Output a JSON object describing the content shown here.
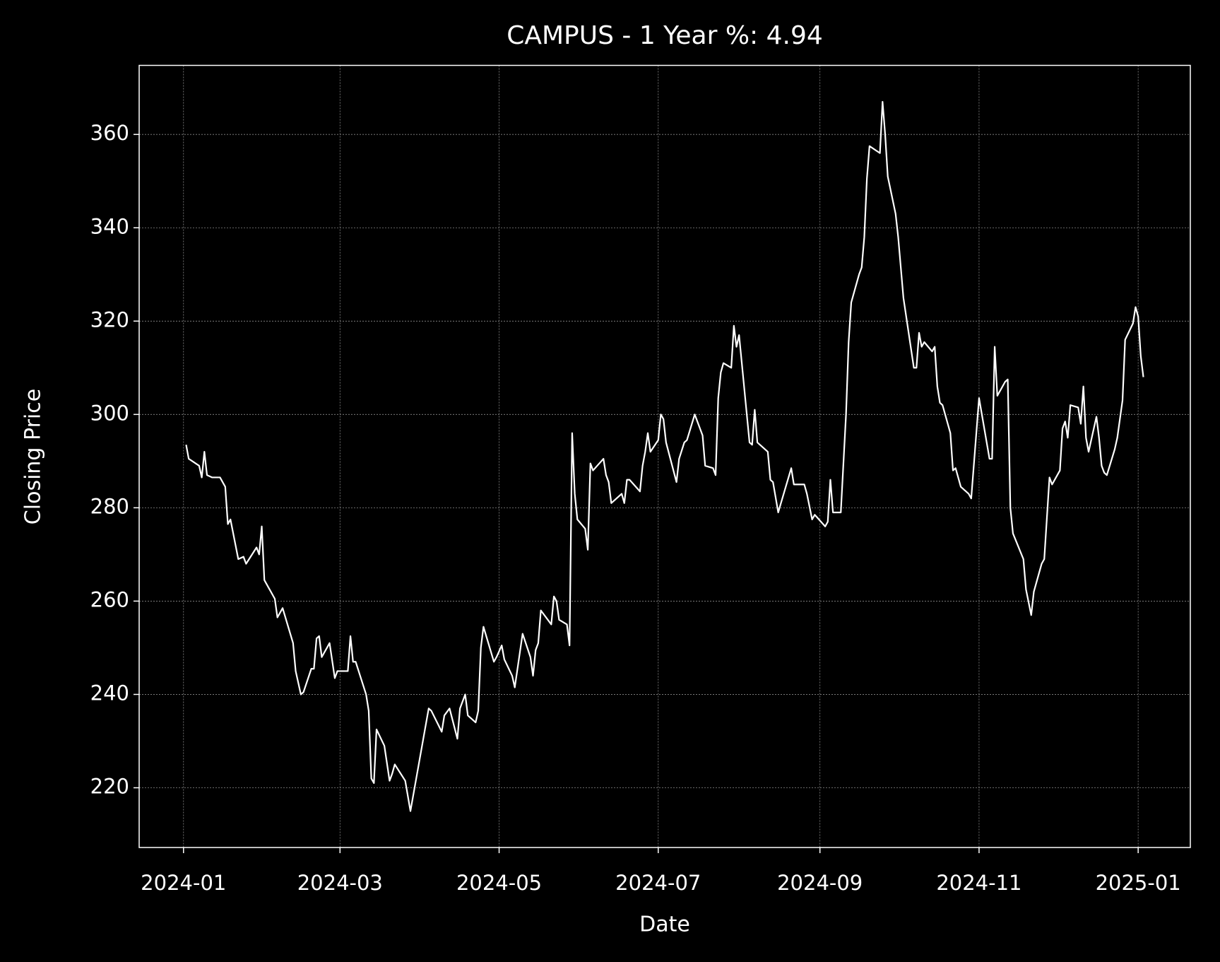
{
  "chart_data": {
    "type": "line",
    "title": "CAMPUS - 1 Year %: 4.94",
    "x_label": "Date",
    "y_label": "Closing Price",
    "color": "#ffffff",
    "grid": true,
    "xlim": [
      "2023-12-15",
      "2025-01-21"
    ],
    "ylim": [
      207.2,
      374.8
    ],
    "xticks": [
      {
        "value": "2024-01-01",
        "label": "2024-01"
      },
      {
        "value": "2024-03-01",
        "label": "2024-03"
      },
      {
        "value": "2024-05-01",
        "label": "2024-05"
      },
      {
        "value": "2024-07-01",
        "label": "2024-07"
      },
      {
        "value": "2024-09-01",
        "label": "2024-09"
      },
      {
        "value": "2024-11-01",
        "label": "2024-11"
      },
      {
        "value": "2025-01-01",
        "label": "2025-01"
      }
    ],
    "yticks": [
      220,
      240,
      260,
      280,
      300,
      320,
      340,
      360
    ],
    "x": [
      "2024-01-02",
      "2024-01-03",
      "2024-01-07",
      "2024-01-08",
      "2024-01-09",
      "2024-01-10",
      "2024-01-12",
      "2024-01-15",
      "2024-01-17",
      "2024-01-18",
      "2024-01-19",
      "2024-01-22",
      "2024-01-24",
      "2024-01-25",
      "2024-01-29",
      "2024-01-30",
      "2024-01-31",
      "2024-02-01",
      "2024-02-05",
      "2024-02-06",
      "2024-02-08",
      "2024-02-12",
      "2024-02-13",
      "2024-02-15",
      "2024-02-16",
      "2024-02-19",
      "2024-02-20",
      "2024-02-21",
      "2024-02-22",
      "2024-02-23",
      "2024-02-26",
      "2024-02-28",
      "2024-02-29",
      "2024-03-04",
      "2024-03-05",
      "2024-03-06",
      "2024-03-07",
      "2024-03-11",
      "2024-03-12",
      "2024-03-13",
      "2024-03-14",
      "2024-03-15",
      "2024-03-18",
      "2024-03-20",
      "2024-03-21",
      "2024-03-22",
      "2024-03-26",
      "2024-03-28",
      "2024-04-04",
      "2024-04-05",
      "2024-04-09",
      "2024-04-10",
      "2024-04-12",
      "2024-04-15",
      "2024-04-16",
      "2024-04-18",
      "2024-04-19",
      "2024-04-22",
      "2024-04-23",
      "2024-04-24",
      "2024-04-25",
      "2024-04-29",
      "2024-04-30",
      "2024-05-02",
      "2024-05-03",
      "2024-05-06",
      "2024-05-07",
      "2024-05-10",
      "2024-05-13",
      "2024-05-14",
      "2024-05-15",
      "2024-05-16",
      "2024-05-17",
      "2024-05-21",
      "2024-05-22",
      "2024-05-23",
      "2024-05-24",
      "2024-05-27",
      "2024-05-28",
      "2024-05-29",
      "2024-05-30",
      "2024-05-31",
      "2024-06-03",
      "2024-06-04",
      "2024-06-05",
      "2024-06-06",
      "2024-06-10",
      "2024-06-11",
      "2024-06-12",
      "2024-06-13",
      "2024-06-17",
      "2024-06-18",
      "2024-06-19",
      "2024-06-20",
      "2024-06-24",
      "2024-06-25",
      "2024-06-26",
      "2024-06-27",
      "2024-06-28",
      "2024-07-01",
      "2024-07-02",
      "2024-07-03",
      "2024-07-04",
      "2024-07-08",
      "2024-07-09",
      "2024-07-11",
      "2024-07-12",
      "2024-07-15",
      "2024-07-18",
      "2024-07-19",
      "2024-07-22",
      "2024-07-23",
      "2024-07-24",
      "2024-07-25",
      "2024-07-26",
      "2024-07-29",
      "2024-07-30",
      "2024-07-31",
      "2024-08-01",
      "2024-08-05",
      "2024-08-06",
      "2024-08-07",
      "2024-08-08",
      "2024-08-12",
      "2024-08-13",
      "2024-08-14",
      "2024-08-16",
      "2024-08-21",
      "2024-08-22",
      "2024-08-26",
      "2024-08-27",
      "2024-08-29",
      "2024-08-30",
      "2024-09-03",
      "2024-09-04",
      "2024-09-05",
      "2024-09-06",
      "2024-09-09",
      "2024-09-11",
      "2024-09-12",
      "2024-09-13",
      "2024-09-16",
      "2024-09-17",
      "2024-09-18",
      "2024-09-19",
      "2024-09-20",
      "2024-09-24",
      "2024-09-25",
      "2024-09-26",
      "2024-09-27",
      "2024-09-30",
      "2024-10-01",
      "2024-10-03",
      "2024-10-07",
      "2024-10-08",
      "2024-10-09",
      "2024-10-10",
      "2024-10-11",
      "2024-10-14",
      "2024-10-15",
      "2024-10-16",
      "2024-10-17",
      "2024-10-18",
      "2024-10-21",
      "2024-10-22",
      "2024-10-23",
      "2024-10-25",
      "2024-10-28",
      "2024-10-29",
      "2024-11-01",
      "2024-11-05",
      "2024-11-06",
      "2024-11-07",
      "2024-11-08",
      "2024-11-11",
      "2024-11-12",
      "2024-11-13",
      "2024-11-14",
      "2024-11-18",
      "2024-11-19",
      "2024-11-21",
      "2024-11-22",
      "2024-11-25",
      "2024-11-26",
      "2024-11-28",
      "2024-11-29",
      "2024-12-02",
      "2024-12-03",
      "2024-12-04",
      "2024-12-05",
      "2024-12-06",
      "2024-12-09",
      "2024-12-10",
      "2024-12-11",
      "2024-12-12",
      "2024-12-13",
      "2024-12-16",
      "2024-12-17",
      "2024-12-18",
      "2024-12-19",
      "2024-12-20",
      "2024-12-23",
      "2024-12-24",
      "2024-12-26",
      "2024-12-27",
      "2024-12-30",
      "2024-12-31",
      "2025-01-01",
      "2025-01-02",
      "2025-01-03"
    ],
    "values": [
      293.5,
      290.5,
      289,
      286.5,
      292,
      287,
      286.5,
      286.5,
      284.5,
      276.5,
      277.5,
      269,
      269.5,
      268,
      271.5,
      270,
      276,
      264.5,
      260.5,
      256.5,
      258.5,
      251,
      245,
      240,
      240.5,
      245.5,
      245.5,
      252,
      252.5,
      248,
      251,
      243.5,
      245,
      245,
      252.5,
      247,
      247,
      240,
      236.5,
      222,
      221,
      232.5,
      229,
      221.5,
      223,
      225,
      221.5,
      215,
      237,
      236.5,
      232,
      235.5,
      237,
      230.5,
      237,
      240,
      235.5,
      234,
      236.5,
      250,
      254.5,
      247,
      248,
      250.5,
      247.5,
      244,
      241.5,
      253,
      248,
      244,
      249.5,
      251,
      258,
      255,
      261,
      260,
      256,
      255,
      250.5,
      296,
      283,
      277.5,
      275.5,
      271,
      289.5,
      288,
      290.5,
      287,
      285.5,
      281,
      283,
      281,
      286,
      286,
      283.5,
      289,
      292,
      296,
      292,
      294.5,
      300,
      299,
      294,
      285.5,
      290.5,
      294,
      294.5,
      300,
      295.5,
      289,
      288.5,
      287,
      303.5,
      309,
      311,
      310,
      319,
      314.5,
      317,
      294,
      293.5,
      301,
      294,
      292,
      286,
      285.5,
      279,
      288.5,
      285,
      285,
      283,
      277.5,
      278.5,
      276,
      277,
      286,
      279,
      279,
      300,
      315.5,
      324,
      330,
      331.5,
      338,
      350.5,
      357.5,
      356,
      367,
      360,
      351,
      343,
      338,
      325,
      310,
      310,
      317.5,
      314.5,
      315.5,
      313.5,
      314.5,
      306,
      302.5,
      302,
      296,
      288,
      288.5,
      284.5,
      283,
      282,
      303.5,
      290.5,
      290.5,
      314.5,
      304,
      307,
      307.5,
      280,
      274.5,
      269,
      262.5,
      257,
      262,
      268,
      269,
      286.5,
      285,
      288,
      297,
      298.5,
      295,
      302,
      301.5,
      298,
      306,
      295,
      292,
      299.5,
      295,
      289,
      287.5,
      287,
      292.5,
      295,
      303,
      316,
      319.5,
      323,
      321,
      312.5,
      308
    ]
  }
}
